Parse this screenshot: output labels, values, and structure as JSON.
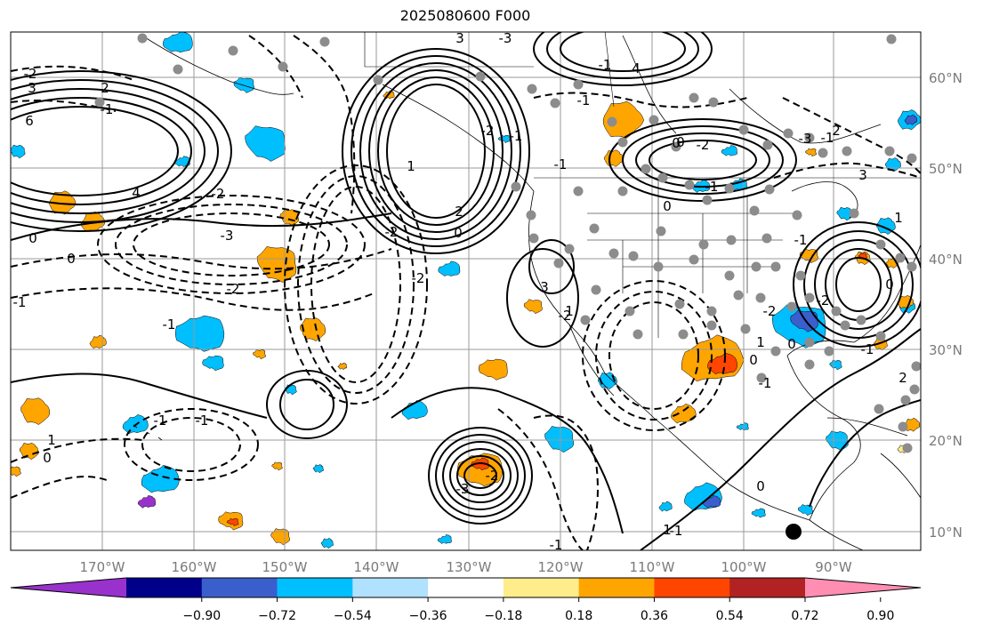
{
  "title": "2025080600 F000",
  "map": {
    "lon_labels": [
      "170°W",
      "160°W",
      "150°W",
      "140°W",
      "130°W",
      "120°W",
      "110°W",
      "100°W",
      "90°W"
    ],
    "lat_labels": [
      "60°N",
      "50°N",
      "40°N",
      "30°N",
      "20°N",
      "10°N"
    ],
    "contour_labels": [
      "-2",
      "3",
      "2",
      "6",
      "-1",
      "4",
      "-2",
      "-3",
      "-2",
      "0",
      "0",
      "-2",
      "-1",
      "-1",
      "-1",
      "1",
      "0",
      "-1",
      "-2",
      "-3",
      "3",
      "4",
      "1",
      "2",
      "-1",
      "-1",
      "0",
      "-1",
      "1",
      "-2",
      "-3",
      "-2",
      "3",
      "-2",
      "0",
      "-1",
      "0",
      "-2",
      "-1",
      "2",
      "-3",
      "-1",
      "-2",
      "1",
      "0",
      "0",
      "-1",
      "-2",
      "0",
      "1",
      "-1",
      "3",
      "0",
      "-1",
      "2",
      "1",
      "0",
      "-1",
      "-1",
      "1"
    ]
  },
  "colorbar": {
    "ticks": [
      "−0.90",
      "−0.72",
      "−0.54",
      "−0.36",
      "−0.18",
      "0.18",
      "0.36",
      "0.54",
      "0.72",
      "0.90"
    ],
    "colors": [
      "#9932cc",
      "#00008b",
      "#3a5fcd",
      "#00bfff",
      "#b0e2ff",
      "#ffffff",
      "#ffec8b",
      "#ffa500",
      "#ff4500",
      "#b22222",
      "#ff8eb2"
    ]
  }
}
